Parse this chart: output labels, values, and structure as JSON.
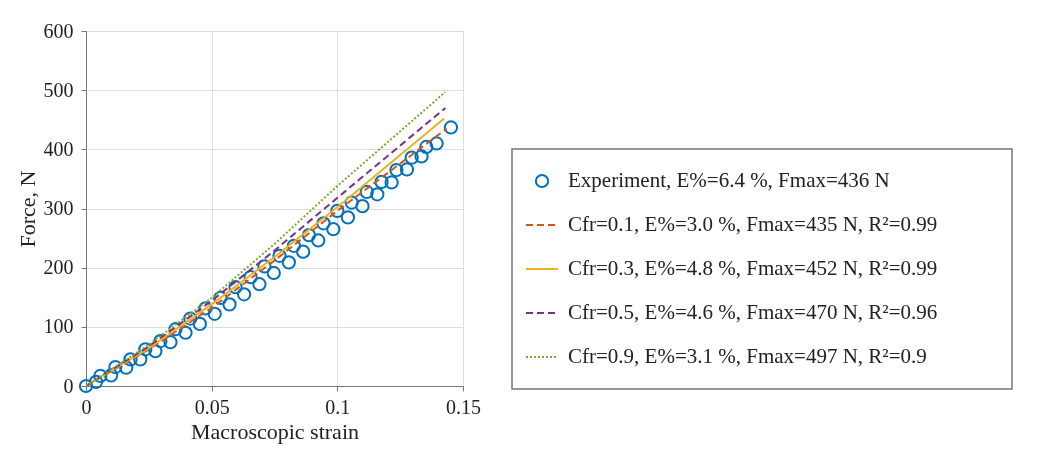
{
  "chart_data": {
    "type": "line",
    "xlabel": "Macroscopic strain",
    "ylabel": "Force, N",
    "xlim": [
      0,
      0.15
    ],
    "ylim": [
      0,
      600
    ],
    "xticks": [
      0,
      0.05,
      0.1,
      0.15
    ],
    "yticks": [
      0,
      100,
      200,
      300,
      400,
      500,
      600
    ],
    "grid": true,
    "legend": "right",
    "series": [
      {
        "name": "Experiment, E%=6.4 %, Fmax=436 N",
        "type": "scatter",
        "marker": "circle",
        "color": "#0072bd",
        "x": [
          0,
          0.004,
          0.0057,
          0.01,
          0.0117,
          0.016,
          0.0177,
          0.0216,
          0.0236,
          0.0276,
          0.0296,
          0.0336,
          0.0356,
          0.0396,
          0.0415,
          0.0453,
          0.0475,
          0.0512,
          0.0535,
          0.0571,
          0.0595,
          0.0629,
          0.0655,
          0.069,
          0.071,
          0.0747,
          0.077,
          0.0807,
          0.0827,
          0.0864,
          0.0887,
          0.0924,
          0.0945,
          0.0984,
          0.1,
          0.1042,
          0.1057,
          0.11,
          0.1117,
          0.1159,
          0.1176,
          0.1216,
          0.1235,
          0.1277,
          0.1296,
          0.1335,
          0.1354,
          0.1395,
          0.1452
        ],
        "values": [
          0,
          7,
          17,
          18,
          32,
          31,
          45,
          45,
          62,
          59,
          76,
          74,
          96,
          90,
          114,
          105,
          131,
          122,
          149,
          138,
          167,
          155,
          184,
          172,
          202,
          191,
          220,
          209,
          237,
          227,
          255,
          246,
          275,
          265,
          296,
          285,
          310,
          304,
          328,
          324,
          345,
          344,
          365,
          366,
          386,
          388,
          404,
          410,
          437
        ]
      },
      {
        "name": "Cfr=0.1, E%=3.0 %, Fmax=435 N, R²=0.99",
        "color": "#d95319",
        "line_style": "dashed",
        "x": [
          0,
          0.025,
          0.05,
          0.075,
          0.1,
          0.1435
        ],
        "values": [
          0,
          62,
          132,
          212,
          296,
          435
        ]
      },
      {
        "name": "Cfr=0.3, E%=4.8 %, Fmax=452 N, R²=0.99",
        "color": "#edb120",
        "line_style": "solid",
        "x": [
          0,
          0.025,
          0.05,
          0.075,
          0.1,
          0.1425
        ],
        "values": [
          0,
          64,
          138,
          218,
          302,
          452
        ]
      },
      {
        "name": "Cfr=0.5, E%=4.6 %, Fmax=470 N, R²=0.96",
        "color": "#7e2f8e",
        "line_style": "dashed",
        "x": [
          0,
          0.025,
          0.05,
          0.075,
          0.1,
          0.143
        ],
        "values": [
          0,
          67,
          144,
          229,
          318,
          470
        ]
      },
      {
        "name": "Cfr=0.9, E%=3.1 %, Fmax=497 N, R²=0.9",
        "color": "#77ac30",
        "line_style": "dotted",
        "x": [
          0,
          0.025,
          0.05,
          0.075,
          0.1,
          0.143
        ],
        "values": [
          0,
          70,
          149,
          240,
          338,
          497
        ]
      }
    ]
  }
}
